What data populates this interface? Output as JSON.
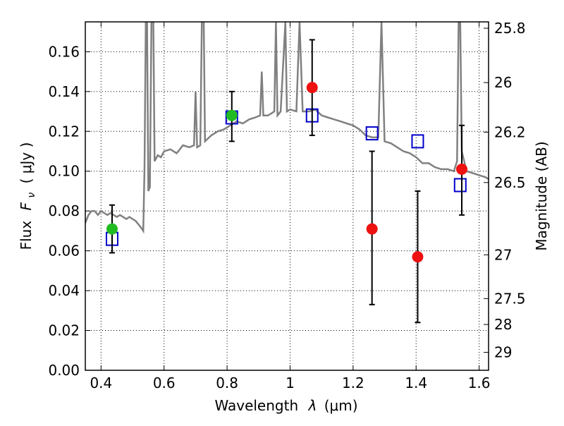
{
  "chart_data": {
    "type": "scatter",
    "xlabel": "Wavelength",
    "xlabel_symbol": "λ",
    "xlabel_unit": "(μm)",
    "ylabel": "Flux",
    "ylabel_symbol": "F",
    "ylabel_subscript": "ν",
    "ylabel_unit": "( μJy )",
    "y2label": "Magnitude (AB)",
    "xlim": [
      0.35,
      1.63
    ],
    "ylim": [
      0.0,
      0.175
    ],
    "grid": true,
    "x_ticks": [
      {
        "value": 0.4,
        "label": "0.4"
      },
      {
        "value": 0.6,
        "label": "0.6"
      },
      {
        "value": 0.8,
        "label": "0.8"
      },
      {
        "value": 1.0,
        "label": "1"
      },
      {
        "value": 1.2,
        "label": "1.2"
      },
      {
        "value": 1.4,
        "label": "1.4"
      },
      {
        "value": 1.6,
        "label": "1.6"
      }
    ],
    "y_ticks": [
      {
        "value": 0.0,
        "label": "0.00"
      },
      {
        "value": 0.02,
        "label": "0.02"
      },
      {
        "value": 0.04,
        "label": "0.04"
      },
      {
        "value": 0.06,
        "label": "0.06"
      },
      {
        "value": 0.08,
        "label": "0.08"
      },
      {
        "value": 0.1,
        "label": "0.10"
      },
      {
        "value": 0.12,
        "label": "0.12"
      },
      {
        "value": 0.14,
        "label": "0.14"
      },
      {
        "value": 0.16,
        "label": "0.16"
      }
    ],
    "y2_ticks": [
      {
        "flux": 0.1718,
        "label": "25.8"
      },
      {
        "flux": 0.1445,
        "label": "26"
      },
      {
        "flux": 0.1196,
        "label": "26.2"
      },
      {
        "flux": 0.0943,
        "label": "26.5"
      },
      {
        "flux": 0.058,
        "label": "27"
      },
      {
        "flux": 0.036,
        "label": "27.5"
      },
      {
        "flux": 0.023,
        "label": "28"
      },
      {
        "flux": 0.009,
        "label": "29"
      }
    ],
    "series": [
      {
        "kind": "line",
        "color": "#808080",
        "points": [
          [
            0.35,
            0.074
          ],
          [
            0.36,
            0.078
          ],
          [
            0.37,
            0.08
          ],
          [
            0.38,
            0.08
          ],
          [
            0.39,
            0.078
          ],
          [
            0.4,
            0.08
          ],
          [
            0.41,
            0.079
          ],
          [
            0.42,
            0.078
          ],
          [
            0.43,
            0.079
          ],
          [
            0.44,
            0.078
          ],
          [
            0.45,
            0.077
          ],
          [
            0.46,
            0.078
          ],
          [
            0.47,
            0.077
          ],
          [
            0.48,
            0.076
          ],
          [
            0.49,
            0.077
          ],
          [
            0.5,
            0.076
          ],
          [
            0.51,
            0.075
          ],
          [
            0.52,
            0.073
          ],
          [
            0.53,
            0.071
          ],
          [
            0.534,
            0.07
          ],
          [
            0.538,
            0.102
          ],
          [
            0.542,
            0.175
          ],
          [
            0.546,
            0.175
          ],
          [
            0.55,
            0.09
          ],
          [
            0.555,
            0.092
          ],
          [
            0.56,
            0.175
          ],
          [
            0.566,
            0.175
          ],
          [
            0.57,
            0.105
          ],
          [
            0.58,
            0.108
          ],
          [
            0.59,
            0.107
          ],
          [
            0.6,
            0.11
          ],
          [
            0.62,
            0.111
          ],
          [
            0.64,
            0.109
          ],
          [
            0.66,
            0.113
          ],
          [
            0.68,
            0.112
          ],
          [
            0.695,
            0.113
          ],
          [
            0.7,
            0.14
          ],
          [
            0.705,
            0.112
          ],
          [
            0.715,
            0.113
          ],
          [
            0.72,
            0.175
          ],
          [
            0.726,
            0.175
          ],
          [
            0.73,
            0.115
          ],
          [
            0.75,
            0.118
          ],
          [
            0.77,
            0.12
          ],
          [
            0.79,
            0.121
          ],
          [
            0.81,
            0.123
          ],
          [
            0.83,
            0.125
          ],
          [
            0.85,
            0.124
          ],
          [
            0.87,
            0.126
          ],
          [
            0.89,
            0.127
          ],
          [
            0.905,
            0.128
          ],
          [
            0.91,
            0.15
          ],
          [
            0.915,
            0.128
          ],
          [
            0.93,
            0.128
          ],
          [
            0.95,
            0.13
          ],
          [
            0.955,
            0.175
          ],
          [
            0.96,
            0.128
          ],
          [
            0.97,
            0.13
          ],
          [
            0.985,
            0.175
          ],
          [
            0.99,
            0.13
          ],
          [
            1.0,
            0.131
          ],
          [
            1.02,
            0.13
          ],
          [
            1.03,
            0.175
          ],
          [
            1.04,
            0.13
          ],
          [
            1.06,
            0.13
          ],
          [
            1.08,
            0.131
          ],
          [
            1.1,
            0.128
          ],
          [
            1.12,
            0.127
          ],
          [
            1.14,
            0.126
          ],
          [
            1.16,
            0.125
          ],
          [
            1.18,
            0.124
          ],
          [
            1.2,
            0.123
          ],
          [
            1.22,
            0.121
          ],
          [
            1.24,
            0.118
          ],
          [
            1.26,
            0.117
          ],
          [
            1.28,
            0.117
          ],
          [
            1.29,
            0.175
          ],
          [
            1.3,
            0.115
          ],
          [
            1.32,
            0.114
          ],
          [
            1.34,
            0.112
          ],
          [
            1.36,
            0.11
          ],
          [
            1.38,
            0.109
          ],
          [
            1.4,
            0.107
          ],
          [
            1.42,
            0.104
          ],
          [
            1.44,
            0.104
          ],
          [
            1.46,
            0.102
          ],
          [
            1.48,
            0.101
          ],
          [
            1.5,
            0.101
          ],
          [
            1.52,
            0.1
          ],
          [
            1.53,
            0.105
          ],
          [
            1.535,
            0.175
          ],
          [
            1.54,
            0.175
          ],
          [
            1.545,
            0.11
          ],
          [
            1.56,
            0.1
          ],
          [
            1.58,
            0.099
          ],
          [
            1.6,
            0.098
          ],
          [
            1.62,
            0.097
          ],
          [
            1.63,
            0.096
          ]
        ]
      },
      {
        "kind": "open-square",
        "color": "#0000cc",
        "points": [
          [
            0.435,
            0.066
          ],
          [
            0.815,
            0.127
          ],
          [
            1.07,
            0.128
          ],
          [
            1.26,
            0.119
          ],
          [
            1.405,
            0.115
          ],
          [
            1.54,
            0.093
          ]
        ]
      },
      {
        "kind": "filled-circle",
        "color": "#22bb22",
        "points": [
          {
            "x": 0.435,
            "y": 0.071,
            "err_low": 0.059,
            "err_high": 0.083
          },
          {
            "x": 0.815,
            "y": 0.128,
            "err_low": 0.115,
            "err_high": 0.14
          }
        ]
      },
      {
        "kind": "filled-circle",
        "color": "#ee1111",
        "points": [
          {
            "x": 1.07,
            "y": 0.142,
            "err_low": 0.118,
            "err_high": 0.166
          },
          {
            "x": 1.26,
            "y": 0.071,
            "err_low": 0.033,
            "err_high": 0.11
          },
          {
            "x": 1.405,
            "y": 0.057,
            "err_low": 0.024,
            "err_high": 0.09
          },
          {
            "x": 1.545,
            "y": 0.101,
            "err_low": 0.078,
            "err_high": 0.123
          }
        ]
      }
    ]
  }
}
